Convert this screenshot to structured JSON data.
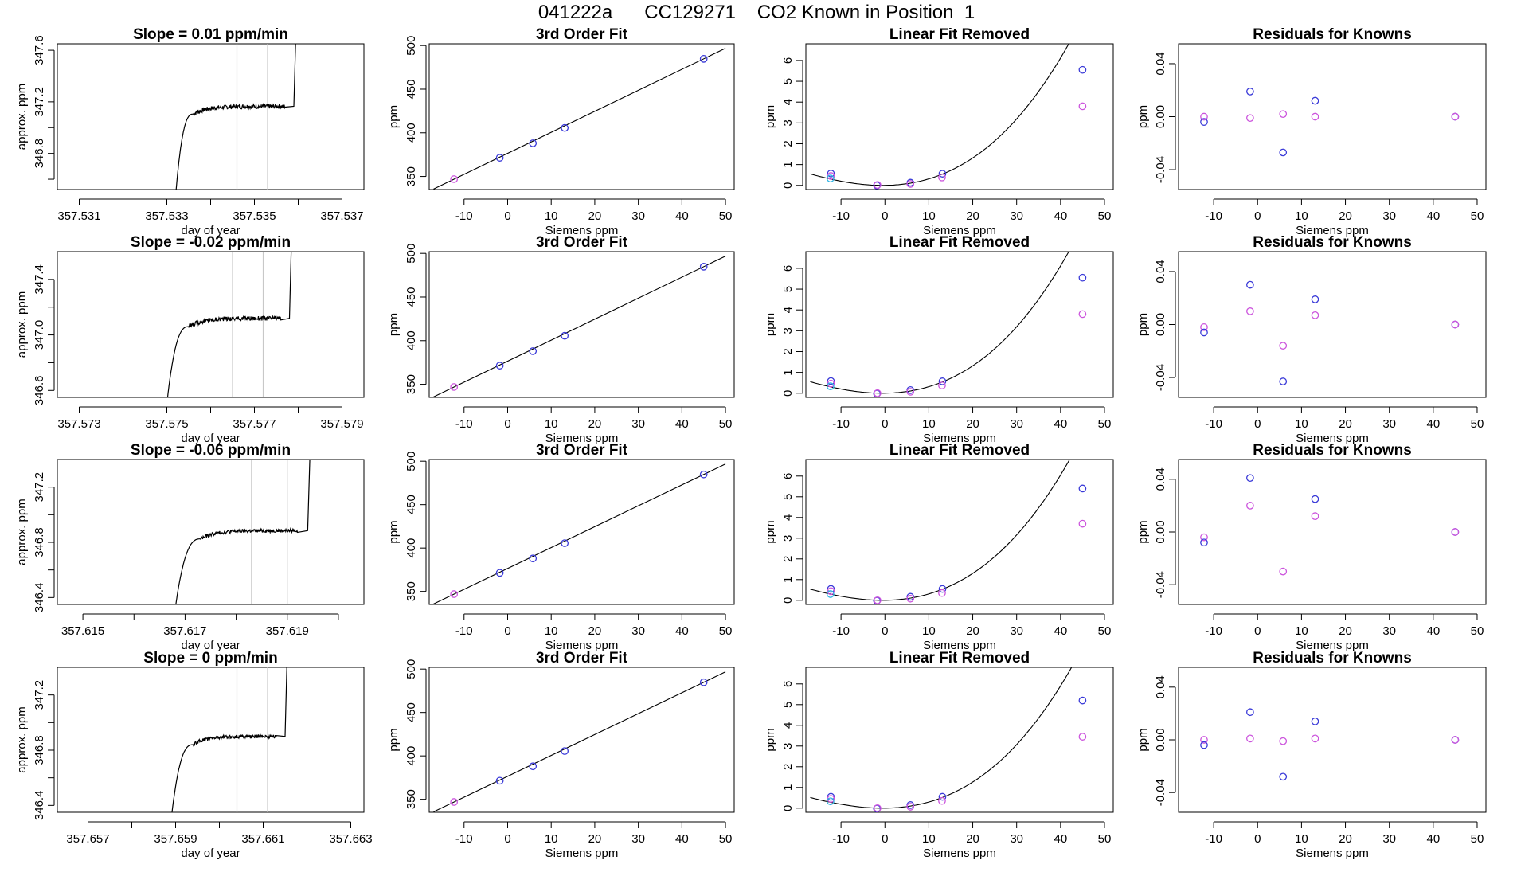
{
  "title": {
    "run_id": "041222a",
    "tank_id": "CC129271",
    "subject": "CO2 Known in Position  1"
  },
  "colors": {
    "axis": "#000000",
    "trace": "#000000",
    "window_line": "#c8c8c8",
    "point_blue": "#3a3ad8",
    "point_magenta": "#cc55dd",
    "point_cyan": "#33b5e5"
  },
  "chart_data": [
    {
      "type": "line",
      "row": 1,
      "panel": "trace",
      "title": "Slope =  0.01  ppm/min",
      "xlabel": "day of year",
      "ylabel": "approx. ppm",
      "xlim": [
        357.5305,
        357.5375
      ],
      "ylim": [
        346.52,
        347.65
      ],
      "xticks": [
        "357.531",
        "357.533",
        "357.535",
        "357.537"
      ],
      "xminor": [
        357.532,
        357.534,
        357.536
      ],
      "yticks": [
        "346.8",
        "347.2",
        "347.6"
      ],
      "yminor": [
        346.6,
        347.0,
        347.4
      ],
      "plateau": 347.165,
      "noise": 0.018,
      "trace_start": 357.5332,
      "rise_end": 357.5336,
      "trace_end": 357.5357,
      "spike": 357.5359,
      "window": [
        357.5346,
        357.5353
      ]
    },
    {
      "type": "line",
      "row": 1,
      "panel": "fit",
      "title": "3rd Order Fit",
      "xlabel": "Siemens ppm",
      "ylabel": "ppm",
      "xlim": [
        -18,
        52
      ],
      "ylim": [
        335,
        502
      ],
      "xticks": [
        "-10",
        "0",
        "10",
        "20",
        "30",
        "40",
        "50"
      ],
      "yticks": [
        "350",
        "400",
        "450",
        "500"
      ],
      "points": [
        [
          -12.3,
          346.9,
          "magenta"
        ],
        [
          -1.8,
          371.4,
          "blue"
        ],
        [
          5.8,
          388.0,
          "blue"
        ],
        [
          13.1,
          405.6,
          "blue"
        ],
        [
          45.0,
          484.8,
          "blue"
        ]
      ]
    },
    {
      "type": "line",
      "row": 1,
      "panel": "linear",
      "title": "Linear Fit Removed",
      "xlabel": "Siemens ppm",
      "ylabel": "ppm",
      "xlim": [
        -18,
        52
      ],
      "ylim": [
        -0.2,
        6.8
      ],
      "xticks": [
        "-10",
        "0",
        "10",
        "20",
        "30",
        "40",
        "50"
      ],
      "yticks": [
        "0",
        "1",
        "2",
        "3",
        "4",
        "5",
        "6"
      ],
      "curve_a": 0.00256,
      "points": [
        [
          -12.3,
          0.57,
          "blue"
        ],
        [
          -12.3,
          0.45,
          "magenta"
        ],
        [
          -12.4,
          0.33,
          "cyan"
        ],
        [
          -1.8,
          0.0,
          "blue"
        ],
        [
          -1.7,
          0.02,
          "magenta"
        ],
        [
          5.8,
          0.13,
          "blue"
        ],
        [
          5.8,
          0.07,
          "magenta"
        ],
        [
          13.1,
          0.56,
          "blue"
        ],
        [
          13.0,
          0.38,
          "magenta"
        ],
        [
          45.0,
          5.55,
          "blue"
        ],
        [
          45.0,
          3.8,
          "magenta"
        ]
      ]
    },
    {
      "type": "scatter",
      "row": 1,
      "panel": "resid",
      "title": "Residuals for Knowns",
      "xlabel": "Siemens ppm",
      "ylabel": "ppm",
      "xlim": [
        -18,
        52
      ],
      "ylim": [
        -0.055,
        0.055
      ],
      "xticks": [
        "-10",
        "0",
        "10",
        "20",
        "30",
        "40",
        "50"
      ],
      "yticks": [
        "-0.04",
        "0.00",
        "0.04"
      ],
      "points": [
        [
          -12.2,
          0.0,
          "magenta"
        ],
        [
          -12.2,
          -0.004,
          "blue"
        ],
        [
          -1.7,
          0.019,
          "blue"
        ],
        [
          -1.7,
          -0.001,
          "magenta"
        ],
        [
          5.8,
          -0.027,
          "blue"
        ],
        [
          5.8,
          0.002,
          "magenta"
        ],
        [
          13.1,
          0.012,
          "blue"
        ],
        [
          13.1,
          0.0,
          "magenta"
        ],
        [
          45.0,
          0.0,
          "blue"
        ],
        [
          45.0,
          0.0,
          "magenta"
        ]
      ]
    },
    {
      "type": "line",
      "row": 2,
      "panel": "trace",
      "title": "Slope =  -0.02  ppm/min",
      "xlabel": "day of year",
      "ylabel": "approx. ppm",
      "xlim": [
        357.5725,
        357.5795
      ],
      "ylim": [
        346.55,
        347.6
      ],
      "xticks": [
        "357.573",
        "357.575",
        "357.577",
        "357.579"
      ],
      "xminor": [
        357.574,
        357.576,
        357.578
      ],
      "yticks": [
        "346.6",
        "347.0",
        "347.4"
      ],
      "yminor": [
        346.8,
        347.2
      ],
      "plateau": 347.12,
      "noise": 0.016,
      "trace_start": 357.575,
      "rise_end": 357.5755,
      "trace_end": 357.5776,
      "spike": 357.5778,
      "window": [
        357.5765,
        357.5772
      ]
    },
    {
      "type": "line",
      "row": 2,
      "panel": "fit",
      "title": "3rd Order Fit",
      "xlabel": "Siemens ppm",
      "ylabel": "ppm",
      "xlim": [
        -18,
        52
      ],
      "ylim": [
        335,
        502
      ],
      "xticks": [
        "-10",
        "0",
        "10",
        "20",
        "30",
        "40",
        "50"
      ],
      "yticks": [
        "350",
        "400",
        "450",
        "500"
      ],
      "points": [
        [
          -12.3,
          346.9,
          "magenta"
        ],
        [
          -1.8,
          371.4,
          "blue"
        ],
        [
          5.8,
          388.0,
          "blue"
        ],
        [
          13.1,
          405.6,
          "blue"
        ],
        [
          45.0,
          484.8,
          "blue"
        ]
      ]
    },
    {
      "type": "line",
      "row": 2,
      "panel": "linear",
      "title": "Linear Fit Removed",
      "xlabel": "Siemens ppm",
      "ylabel": "ppm",
      "xlim": [
        -18,
        52
      ],
      "ylim": [
        -0.2,
        6.8
      ],
      "xticks": [
        "-10",
        "0",
        "10",
        "20",
        "30",
        "40",
        "50"
      ],
      "yticks": [
        "0",
        "1",
        "2",
        "3",
        "4",
        "5",
        "6"
      ],
      "curve_a": 0.00256,
      "points": [
        [
          -12.3,
          0.58,
          "blue"
        ],
        [
          -12.3,
          0.46,
          "magenta"
        ],
        [
          -12.4,
          0.33,
          "cyan"
        ],
        [
          -1.8,
          -0.02,
          "blue"
        ],
        [
          -1.7,
          0.0,
          "magenta"
        ],
        [
          5.8,
          0.15,
          "blue"
        ],
        [
          5.8,
          0.07,
          "magenta"
        ],
        [
          13.1,
          0.57,
          "blue"
        ],
        [
          13.0,
          0.37,
          "magenta"
        ],
        [
          45.0,
          5.55,
          "blue"
        ],
        [
          45.0,
          3.8,
          "magenta"
        ]
      ]
    },
    {
      "type": "scatter",
      "row": 2,
      "panel": "resid",
      "title": "Residuals for Knowns",
      "xlabel": "Siemens ppm",
      "ylabel": "ppm",
      "xlim": [
        -18,
        52
      ],
      "ylim": [
        -0.055,
        0.055
      ],
      "xticks": [
        "-10",
        "0",
        "10",
        "20",
        "30",
        "40",
        "50"
      ],
      "yticks": [
        "-0.04",
        "0.00",
        "0.04"
      ],
      "points": [
        [
          -12.2,
          -0.002,
          "magenta"
        ],
        [
          -12.2,
          -0.006,
          "blue"
        ],
        [
          -1.7,
          0.03,
          "blue"
        ],
        [
          -1.7,
          0.01,
          "magenta"
        ],
        [
          5.8,
          -0.016,
          "magenta"
        ],
        [
          5.8,
          -0.043,
          "blue"
        ],
        [
          13.1,
          0.019,
          "blue"
        ],
        [
          13.1,
          0.007,
          "magenta"
        ],
        [
          45.0,
          0.0,
          "blue"
        ],
        [
          45.0,
          0.0,
          "magenta"
        ]
      ]
    },
    {
      "type": "line",
      "row": 3,
      "panel": "trace",
      "title": "Slope =  -0.06  ppm/min",
      "xlabel": "day of year",
      "ylabel": "approx. ppm",
      "xlim": [
        357.6145,
        357.6205
      ],
      "ylim": [
        346.35,
        347.4
      ],
      "xticks": [
        "357.615",
        "357.617",
        "357.619"
      ],
      "xminor": [
        357.616,
        357.618,
        357.62
      ],
      "yticks": [
        "346.4",
        "346.8",
        "347.2"
      ],
      "yminor": [
        346.6,
        347.0
      ],
      "plateau": 346.885,
      "noise": 0.013,
      "trace_start": 357.6168,
      "rise_end": 357.6173,
      "trace_end": 357.6192,
      "spike": 357.6194,
      "window": [
        357.6183,
        357.619
      ]
    },
    {
      "type": "line",
      "row": 3,
      "panel": "fit",
      "title": "3rd Order Fit",
      "xlabel": "Siemens ppm",
      "ylabel": "ppm",
      "xlim": [
        -18,
        52
      ],
      "ylim": [
        335,
        502
      ],
      "xticks": [
        "-10",
        "0",
        "10",
        "20",
        "30",
        "40",
        "50"
      ],
      "yticks": [
        "350",
        "400",
        "450",
        "500"
      ],
      "points": [
        [
          -12.3,
          346.9,
          "magenta"
        ],
        [
          -1.8,
          371.4,
          "blue"
        ],
        [
          5.8,
          388.0,
          "blue"
        ],
        [
          13.1,
          405.6,
          "blue"
        ],
        [
          45.0,
          484.8,
          "blue"
        ]
      ]
    },
    {
      "type": "line",
      "row": 3,
      "panel": "linear",
      "title": "Linear Fit Removed",
      "xlabel": "Siemens ppm",
      "ylabel": "ppm",
      "xlim": [
        -18,
        52
      ],
      "ylim": [
        -0.2,
        6.8
      ],
      "xticks": [
        "-10",
        "0",
        "10",
        "20",
        "30",
        "40",
        "50"
      ],
      "yticks": [
        "0",
        "1",
        "2",
        "3",
        "4",
        "5",
        "6"
      ],
      "curve_a": 0.00252,
      "points": [
        [
          -12.3,
          0.55,
          "blue"
        ],
        [
          -12.3,
          0.44,
          "magenta"
        ],
        [
          -12.4,
          0.3,
          "cyan"
        ],
        [
          -1.8,
          -0.02,
          "blue"
        ],
        [
          -1.7,
          0.0,
          "magenta"
        ],
        [
          5.8,
          0.17,
          "blue"
        ],
        [
          5.8,
          0.08,
          "magenta"
        ],
        [
          13.1,
          0.55,
          "blue"
        ],
        [
          13.0,
          0.35,
          "magenta"
        ],
        [
          45.0,
          5.4,
          "blue"
        ],
        [
          45.0,
          3.7,
          "magenta"
        ]
      ]
    },
    {
      "type": "scatter",
      "row": 3,
      "panel": "resid",
      "title": "Residuals for Knowns",
      "xlabel": "Siemens ppm",
      "ylabel": "ppm",
      "xlim": [
        -18,
        52
      ],
      "ylim": [
        -0.055,
        0.055
      ],
      "xticks": [
        "-10",
        "0",
        "10",
        "20",
        "30",
        "40",
        "50"
      ],
      "yticks": [
        "-0.04",
        "0.00",
        "0.04"
      ],
      "points": [
        [
          -12.2,
          -0.004,
          "magenta"
        ],
        [
          -12.2,
          -0.008,
          "blue"
        ],
        [
          -1.7,
          0.041,
          "blue"
        ],
        [
          -1.7,
          0.02,
          "magenta"
        ],
        [
          5.8,
          -0.03,
          "magenta"
        ],
        [
          13.1,
          0.025,
          "blue"
        ],
        [
          13.1,
          0.012,
          "magenta"
        ],
        [
          45.0,
          0.0,
          "blue"
        ],
        [
          45.0,
          0.0,
          "magenta"
        ]
      ]
    },
    {
      "type": "line",
      "row": 4,
      "panel": "trace",
      "title": "Slope =  0  ppm/min",
      "xlabel": "day of year",
      "ylabel": "approx. ppm",
      "xlim": [
        357.6563,
        357.6633
      ],
      "ylim": [
        346.35,
        347.4
      ],
      "xticks": [
        "357.657",
        "357.659",
        "357.661",
        "357.663"
      ],
      "xminor": [
        357.658,
        357.66,
        357.662
      ],
      "yticks": [
        "346.4",
        "346.8",
        "347.2"
      ],
      "yminor": [
        346.6,
        347.0
      ],
      "plateau": 346.9,
      "noise": 0.012,
      "trace_start": 357.6589,
      "rise_end": 357.6594,
      "trace_end": 357.6613,
      "spike": 357.6615,
      "window": [
        357.6604,
        357.6611
      ]
    },
    {
      "type": "line",
      "row": 4,
      "panel": "fit",
      "title": "3rd Order Fit",
      "xlabel": "Siemens ppm",
      "ylabel": "ppm",
      "xlim": [
        -18,
        52
      ],
      "ylim": [
        335,
        502
      ],
      "xticks": [
        "-10",
        "0",
        "10",
        "20",
        "30",
        "40",
        "50"
      ],
      "yticks": [
        "350",
        "400",
        "450",
        "500"
      ],
      "points": [
        [
          -12.3,
          346.9,
          "magenta"
        ],
        [
          -1.8,
          371.4,
          "blue"
        ],
        [
          5.8,
          388.0,
          "blue"
        ],
        [
          13.1,
          405.6,
          "blue"
        ],
        [
          45.0,
          484.8,
          "blue"
        ]
      ]
    },
    {
      "type": "line",
      "row": 4,
      "panel": "linear",
      "title": "Linear Fit Removed",
      "xlabel": "Siemens ppm",
      "ylabel": "ppm",
      "xlim": [
        -18,
        52
      ],
      "ylim": [
        -0.2,
        6.8
      ],
      "xticks": [
        "-10",
        "0",
        "10",
        "20",
        "30",
        "40",
        "50"
      ],
      "yticks": [
        "0",
        "1",
        "2",
        "3",
        "4",
        "5",
        "6"
      ],
      "curve_a": 0.00243,
      "points": [
        [
          -12.3,
          0.55,
          "blue"
        ],
        [
          -12.3,
          0.45,
          "magenta"
        ],
        [
          -12.4,
          0.33,
          "cyan"
        ],
        [
          -1.8,
          -0.02,
          "blue"
        ],
        [
          -1.7,
          0.0,
          "magenta"
        ],
        [
          5.8,
          0.15,
          "blue"
        ],
        [
          5.8,
          0.07,
          "magenta"
        ],
        [
          13.1,
          0.55,
          "blue"
        ],
        [
          13.0,
          0.35,
          "magenta"
        ],
        [
          45.0,
          5.2,
          "blue"
        ],
        [
          45.0,
          3.45,
          "magenta"
        ]
      ]
    },
    {
      "type": "scatter",
      "row": 4,
      "panel": "resid",
      "title": "Residuals for Knowns",
      "xlabel": "Siemens ppm",
      "ylabel": "ppm",
      "xlim": [
        -18,
        52
      ],
      "ylim": [
        -0.055,
        0.055
      ],
      "xticks": [
        "-10",
        "0",
        "10",
        "20",
        "30",
        "40",
        "50"
      ],
      "yticks": [
        "-0.04",
        "0.00",
        "0.04"
      ],
      "points": [
        [
          -12.2,
          0.0,
          "magenta"
        ],
        [
          -12.2,
          -0.004,
          "blue"
        ],
        [
          -1.7,
          0.021,
          "blue"
        ],
        [
          -1.7,
          0.001,
          "magenta"
        ],
        [
          5.8,
          -0.028,
          "blue"
        ],
        [
          5.8,
          -0.001,
          "magenta"
        ],
        [
          13.1,
          0.014,
          "blue"
        ],
        [
          13.1,
          0.001,
          "magenta"
        ],
        [
          45.0,
          0.0,
          "blue"
        ],
        [
          45.0,
          0.0,
          "magenta"
        ]
      ]
    }
  ]
}
